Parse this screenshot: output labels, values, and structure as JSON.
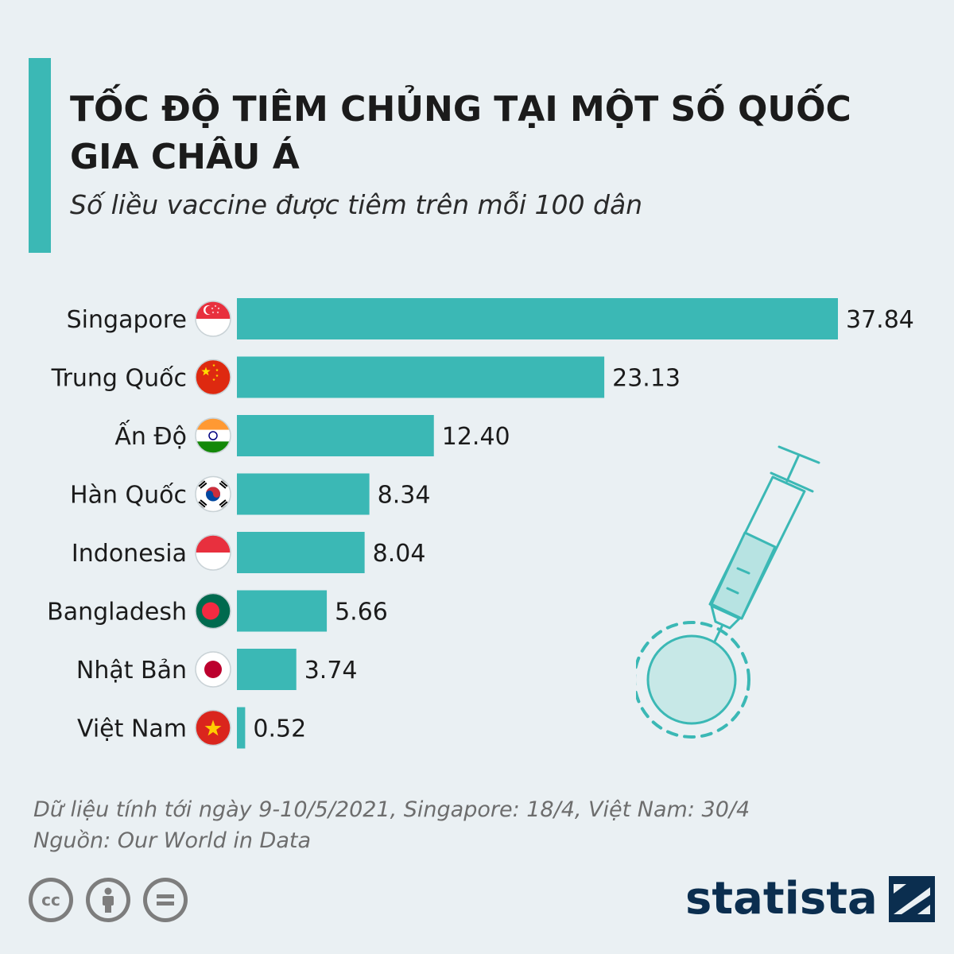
{
  "header": {
    "title": "TỐC ĐỘ TIÊM CHỦNG TẠI MỘT SỐ QUỐC GIA CHÂU Á",
    "subtitle": "Số liều vaccine được tiêm trên mỗi 100 dân"
  },
  "chart_data": {
    "type": "bar",
    "orientation": "horizontal",
    "title": "TỐC ĐỘ TIÊM CHỦNG TẠI MỘT SỐ QUỐC GIA CHÂU Á",
    "subtitle": "Số liều vaccine được tiêm trên mỗi 100 dân",
    "categories": [
      "Singapore",
      "Trung Quốc",
      "Ấn Độ",
      "Hàn Quốc",
      "Indonesia",
      "Bangladesh",
      "Nhật Bản",
      "Việt Nam"
    ],
    "values": [
      37.84,
      23.13,
      12.4,
      8.34,
      8.04,
      5.66,
      3.74,
      0.52
    ],
    "value_labels": [
      "37.84",
      "23.13",
      "12.40",
      "8.34",
      "8.04",
      "5.66",
      "3.74",
      "0.52"
    ],
    "flags": [
      "flag-singapore-icon",
      "flag-china-icon",
      "flag-india-icon",
      "flag-south-korea-icon",
      "flag-indonesia-icon",
      "flag-bangladesh-icon",
      "flag-japan-icon",
      "flag-vietnam-icon"
    ],
    "xlim": [
      0,
      37.84
    ],
    "grid": false,
    "bar_color": "#3bb8b5"
  },
  "footer": {
    "note": "Dữ liệu tính tới ngày 9-10/5/2021, Singapore: 18/4, Việt Nam: 30/4",
    "source": "Nguồn: Our World in Data",
    "license_icons": [
      "cc-icon",
      "attribution-icon",
      "no-derivatives-icon"
    ],
    "brand": "statista"
  },
  "illustration": "syringe-virus-icon",
  "colors": {
    "accent": "#3bb8b5",
    "background": "#eaf0f3",
    "brand": "#0b2e4f"
  }
}
